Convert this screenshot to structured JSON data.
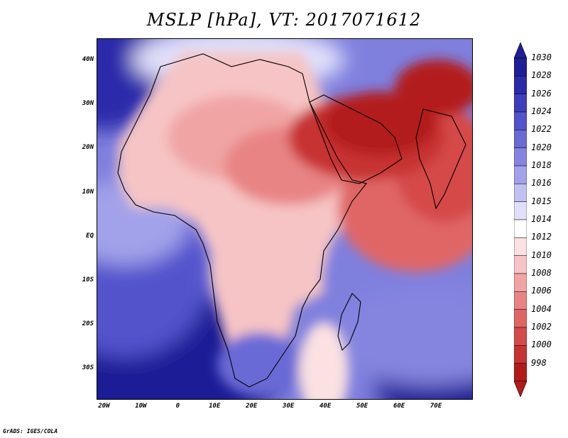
{
  "title": "MSLP [hPa], VT: 2017071612",
  "credit": "GrADS: IGES/COLA",
  "map": {
    "region": "Africa, Arabia and western Indian Ocean",
    "variable": "MSLP",
    "units": "hPa",
    "valid_time": "2017071612",
    "lon_range": [
      -22,
      80
    ],
    "lat_range": [
      -37,
      45
    ]
  },
  "axes": {
    "lat_labels": [
      {
        "label": "40N",
        "lat": 40
      },
      {
        "label": "30N",
        "lat": 30
      },
      {
        "label": "20N",
        "lat": 20
      },
      {
        "label": "10N",
        "lat": 10
      },
      {
        "label": "EQ",
        "lat": 0
      },
      {
        "label": "10S",
        "lat": -10
      },
      {
        "label": "20S",
        "lat": -20
      },
      {
        "label": "30S",
        "lat": -30
      }
    ],
    "lon_labels": [
      {
        "label": "20W",
        "lon": -20
      },
      {
        "label": "10W",
        "lon": -10
      },
      {
        "label": "0",
        "lon": 0
      },
      {
        "label": "10E",
        "lon": 10
      },
      {
        "label": "20E",
        "lon": 20
      },
      {
        "label": "30E",
        "lon": 30
      },
      {
        "label": "40E",
        "lon": 40
      },
      {
        "label": "50E",
        "lon": 50
      },
      {
        "label": "60E",
        "lon": 60
      },
      {
        "label": "70E",
        "lon": 70
      }
    ]
  },
  "colorbar": {
    "top_arrow_color": "#1e1e96",
    "bottom_arrow_color": "#b31b1b",
    "levels": [
      {
        "label": "1030",
        "color": "#1e1e96"
      },
      {
        "label": "1028",
        "color": "#2b2baa"
      },
      {
        "label": "1026",
        "color": "#3d3dbe"
      },
      {
        "label": "1024",
        "color": "#5252cc"
      },
      {
        "label": "1022",
        "color": "#6a6ad6"
      },
      {
        "label": "1020",
        "color": "#8585e0"
      },
      {
        "label": "1018",
        "color": "#a2a2ea"
      },
      {
        "label": "1016",
        "color": "#c0c0f2"
      },
      {
        "label": "1015",
        "color": "#e0e0fa"
      },
      {
        "label": "1014",
        "color": "#ffffff"
      },
      {
        "label": "1012",
        "color": "#fbe1e1"
      },
      {
        "label": "1010",
        "color": "#f6c4c4"
      },
      {
        "label": "1008",
        "color": "#f0a4a4"
      },
      {
        "label": "1006",
        "color": "#e88484"
      },
      {
        "label": "1004",
        "color": "#e06666"
      },
      {
        "label": "1002",
        "color": "#d54a4a"
      },
      {
        "label": "1000",
        "color": "#c73333"
      },
      {
        "label": "998",
        "color": "#b31b1b"
      }
    ]
  },
  "colors": {
    "ocean_high": "#2b2baa",
    "land_neutral": "#fbe1e1",
    "heat_low": "#b31b1b",
    "coastline": "#000000"
  }
}
